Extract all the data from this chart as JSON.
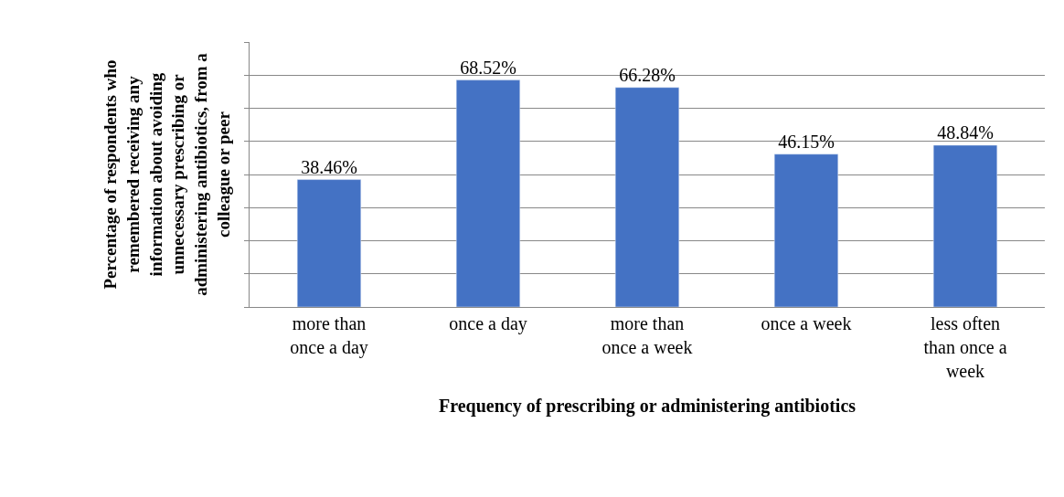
{
  "chart_data": {
    "type": "bar",
    "xlabel": "Frequency of prescribing or administering antibiotics",
    "ylabel": "Percentage of respondents who remembered receiving any information about avoiding unnecessary prescribing or administering antibiotics, from a colleague or peer",
    "categories": [
      "more than once a day",
      "once a day",
      "more than once a week",
      "once a week",
      "less often than once a week"
    ],
    "values": [
      38.46,
      68.52,
      66.28,
      46.15,
      48.84
    ],
    "value_labels": [
      "38.46%",
      "68.52%",
      "66.28%",
      "46.15%",
      "48.84%"
    ],
    "color": "#4472c4",
    "ylim": [
      0,
      80
    ],
    "yticks": [
      {
        "value": 0,
        "label": null
      },
      {
        "value": 10,
        "label": null
      },
      {
        "value": 20,
        "label": null
      },
      {
        "value": 30,
        "label": null
      },
      {
        "value": 40,
        "label": null
      },
      {
        "value": 50,
        "label": null
      },
      {
        "value": 60,
        "label": null
      },
      {
        "value": 70,
        "label": null
      },
      {
        "value": 80,
        "label": null
      }
    ],
    "grid": "y",
    "tick_labels": "x",
    "legend": false
  }
}
